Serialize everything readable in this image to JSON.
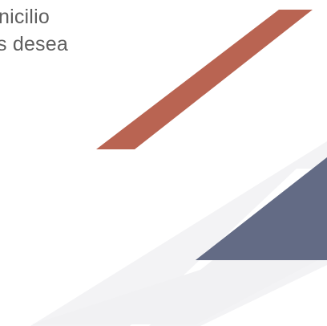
{
  "text": {
    "line1": "nicilio",
    "line2": "s desea"
  },
  "colors": {
    "text": "#5e5e5e",
    "stripe_red": "#b96452",
    "band_blue": "#636b85",
    "shadow_gray": "#f3f3f5",
    "background": "#ffffff"
  }
}
